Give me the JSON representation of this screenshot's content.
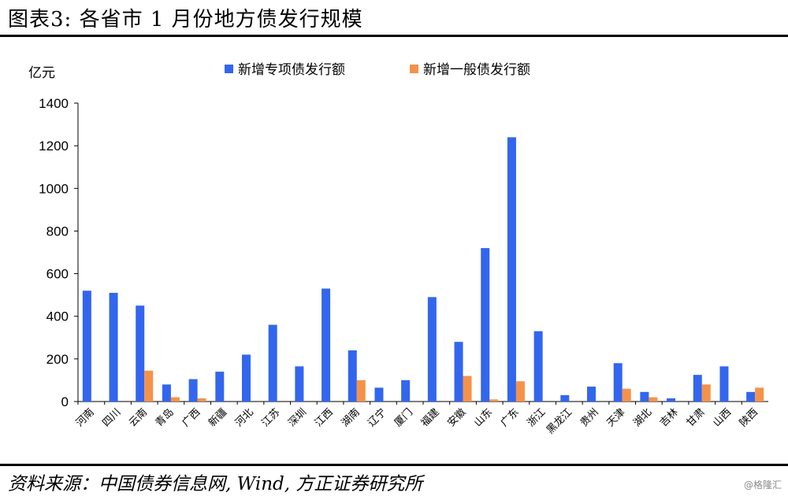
{
  "figure_title": "图表3:   各省市 1 月份地方债发行规模",
  "source_note": "资料来源：中国债券信息网, Wind, 方正证券研究所",
  "watermark": "@格隆汇",
  "chart_data": {
    "type": "bar",
    "title": "",
    "ylabel": "亿元",
    "xlabel": "",
    "ylim": [
      0,
      1400
    ],
    "yticks": [
      0,
      200,
      400,
      600,
      800,
      1000,
      1200,
      1400
    ],
    "grid": false,
    "legend_position": "top",
    "categories": [
      "河南",
      "四川",
      "云南",
      "青岛",
      "广西",
      "新疆",
      "河北",
      "江苏",
      "深圳",
      "江西",
      "湖南",
      "辽宁",
      "厦门",
      "福建",
      "安徽",
      "山东",
      "广东",
      "浙江",
      "黑龙江",
      "贵州",
      "天津",
      "湖北",
      "吉林",
      "甘肃",
      "山西",
      "陕西"
    ],
    "series": [
      {
        "name": "新增专项债发行额",
        "color": "#3366ee",
        "values": [
          520,
          510,
          450,
          80,
          105,
          140,
          220,
          360,
          165,
          530,
          240,
          65,
          100,
          490,
          280,
          720,
          1240,
          330,
          30,
          70,
          180,
          45,
          15,
          125,
          165,
          45
        ]
      },
      {
        "name": "新增一般债发行额",
        "color": "#f5924a",
        "values": [
          0,
          0,
          145,
          20,
          15,
          0,
          0,
          0,
          0,
          0,
          100,
          0,
          0,
          0,
          120,
          10,
          95,
          0,
          0,
          0,
          60,
          20,
          0,
          80,
          0,
          65
        ]
      }
    ]
  }
}
